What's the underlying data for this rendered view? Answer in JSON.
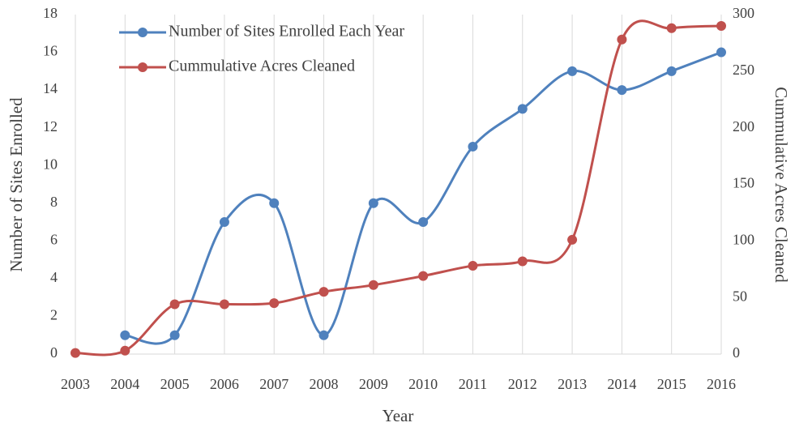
{
  "chart_data": {
    "type": "line",
    "xlabel": "Year",
    "ylabel": "Number of Sites Enrolled",
    "y2label": "Cummulative Acres Cleaned",
    "categories": [
      "2003",
      "2004",
      "2005",
      "2006",
      "2007",
      "2008",
      "2009",
      "2010",
      "2011",
      "2012",
      "2013",
      "2014",
      "2015",
      "2016"
    ],
    "series": [
      {
        "name": "Number of Sites Enrolled Each Year",
        "color": "#4f81bd",
        "axis": "y",
        "values": [
          null,
          1,
          1,
          7,
          8,
          1,
          8,
          7,
          11,
          13,
          15,
          14,
          15,
          16
        ]
      },
      {
        "name": "Cummulative Acres Cleaned",
        "color": "#c0504d",
        "axis": "y2",
        "values": [
          1,
          3,
          44,
          44,
          45,
          55,
          61,
          69,
          78,
          82,
          101,
          278,
          288,
          290
        ]
      }
    ],
    "ylim": [
      0,
      18
    ],
    "yticks": [
      0,
      2,
      4,
      6,
      8,
      10,
      12,
      14,
      16,
      18
    ],
    "y2lim": [
      0,
      300
    ],
    "y2ticks": [
      0,
      50,
      100,
      150,
      200,
      250,
      300
    ],
    "smooth": true,
    "xgrid": true,
    "legend": "upper left"
  }
}
